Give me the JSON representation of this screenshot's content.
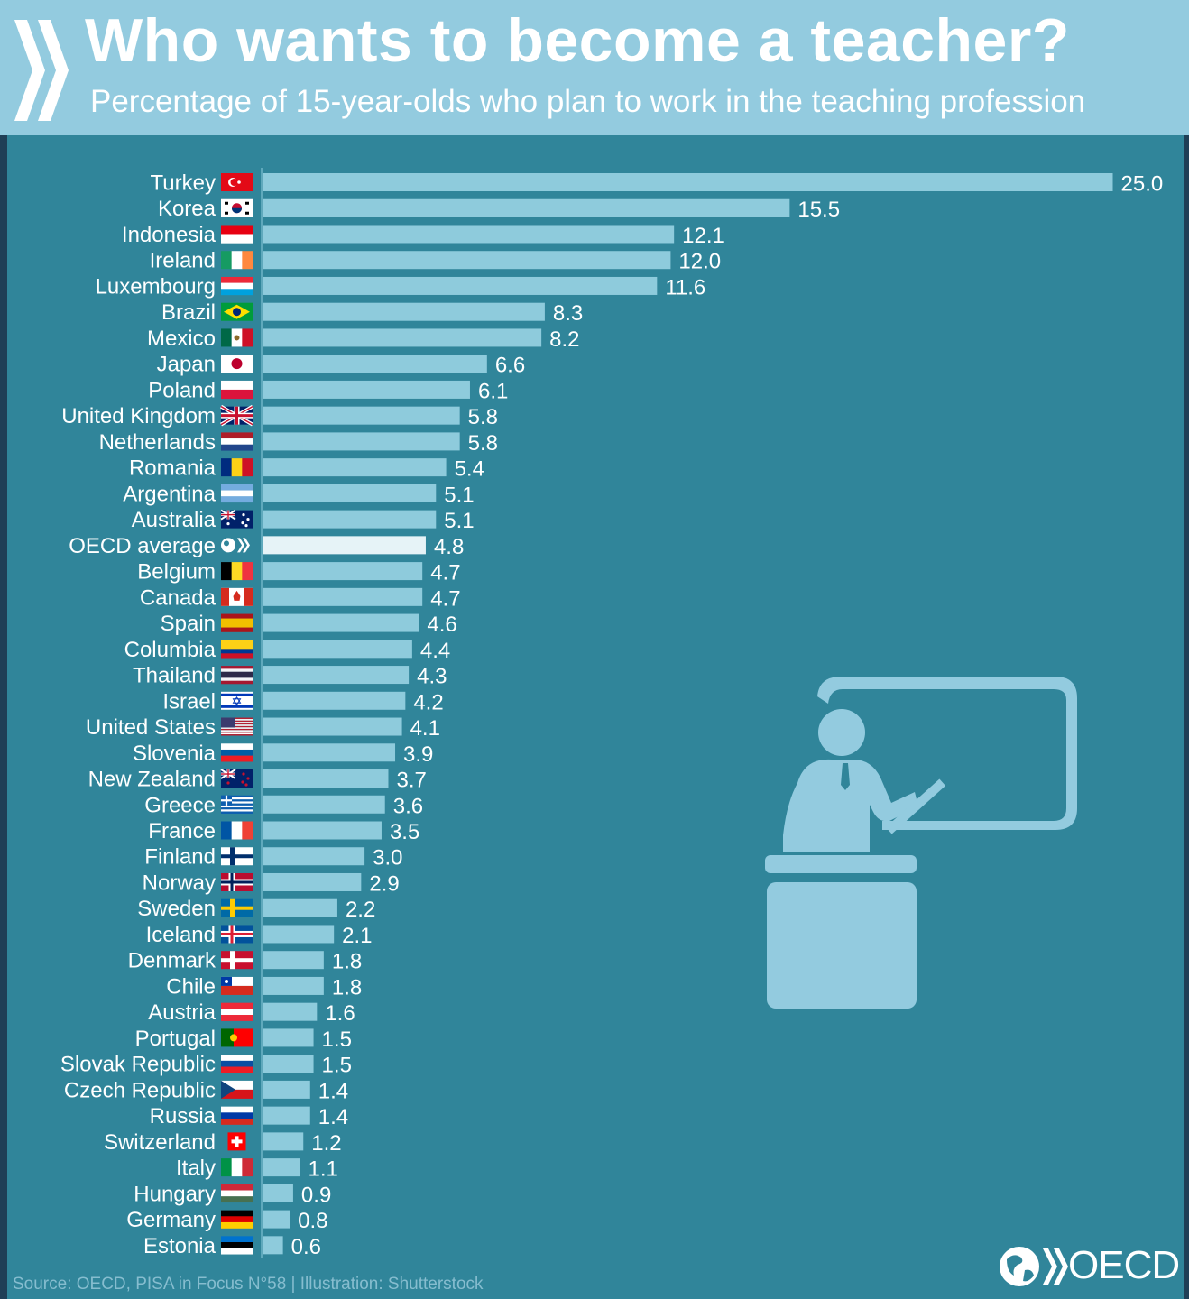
{
  "header": {
    "title": "Who wants to become a teacher?",
    "subtitle": "Percentage of 15-year-olds who plan to work in the teaching profession"
  },
  "footer": {
    "source": "Source: OECD, PISA in Focus N°58 | Illustration: Shutterstock",
    "logo_text": "OECD"
  },
  "colors": {
    "header_bg": "#93cbdf",
    "panel_bg": "#30859a",
    "bar": "#8ecbdc",
    "bar_highlight": "#e6f3f7",
    "illustration": "#93cbdf"
  },
  "chart_data": {
    "type": "bar",
    "orientation": "horizontal",
    "title": "Who wants to become a teacher?",
    "subtitle": "Percentage of 15-year-olds who plan to work in the teaching profession",
    "unit": "%",
    "highlight": "OECD average",
    "xlim": [
      0,
      25
    ],
    "categories": [
      "Turkey",
      "Korea",
      "Indonesia",
      "Ireland",
      "Luxembourg",
      "Brazil",
      "Mexico",
      "Japan",
      "Poland",
      "United Kingdom",
      "Netherlands",
      "Romania",
      "Argentina",
      "Australia",
      "OECD average",
      "Belgium",
      "Canada",
      "Spain",
      "Columbia",
      "Thailand",
      "Israel",
      "United States",
      "Slovenia",
      "New Zealand",
      "Greece",
      "France",
      "Finland",
      "Norway",
      "Sweden",
      "Iceland",
      "Denmark",
      "Chile",
      "Austria",
      "Portugal",
      "Slovak Republic",
      "Czech Republic",
      "Russia",
      "Switzerland",
      "Italy",
      "Hungary",
      "Germany",
      "Estonia"
    ],
    "values": [
      25.0,
      15.5,
      12.1,
      12.0,
      11.6,
      8.3,
      8.2,
      6.6,
      6.1,
      5.8,
      5.8,
      5.4,
      5.1,
      5.1,
      4.8,
      4.7,
      4.7,
      4.6,
      4.4,
      4.3,
      4.2,
      4.1,
      3.9,
      3.7,
      3.6,
      3.5,
      3.0,
      2.9,
      2.2,
      2.1,
      1.8,
      1.8,
      1.6,
      1.5,
      1.5,
      1.4,
      1.4,
      1.2,
      1.1,
      0.9,
      0.8,
      0.6
    ],
    "value_labels": [
      "25.0",
      "15.5",
      "12.1",
      "12.0",
      "11.6",
      "8.3",
      "8.2",
      "6.6",
      "6.1",
      "5.8",
      "5.8",
      "5.4",
      "5.1",
      "5.1",
      "4.8",
      "4.7",
      "4.7",
      "4.6",
      "4.4",
      "4.3",
      "4.2",
      "4.1",
      "3.9",
      "3.7",
      "3.6",
      "3.5",
      "3.0",
      "2.9",
      "2.2",
      "2.1",
      "1.8",
      "1.8",
      "1.6",
      "1.5",
      "1.5",
      "1.4",
      "1.4",
      "1.2",
      "1.1",
      "0.9",
      "0.8",
      "0.6"
    ],
    "flags": [
      "flag-turkey",
      "flag-korea",
      "flag-indonesia",
      "flag-ireland",
      "flag-luxembourg",
      "flag-brazil",
      "flag-mexico",
      "flag-japan",
      "flag-poland",
      "flag-united-kingdom",
      "flag-netherlands",
      "flag-romania",
      "flag-argentina",
      "flag-australia",
      "oecd-logo-icon",
      "flag-belgium",
      "flag-canada",
      "flag-spain",
      "flag-columbia",
      "flag-thailand",
      "flag-israel",
      "flag-united-states",
      "flag-slovenia",
      "flag-new-zealand",
      "flag-greece",
      "flag-france",
      "flag-finland",
      "flag-norway",
      "flag-sweden",
      "flag-iceland",
      "flag-denmark",
      "flag-chile",
      "flag-austria",
      "flag-portugal",
      "flag-slovak-republic",
      "flag-czech-republic",
      "flag-russia",
      "flag-switzerland",
      "flag-italy",
      "flag-hungary",
      "flag-germany",
      "flag-estonia"
    ]
  }
}
